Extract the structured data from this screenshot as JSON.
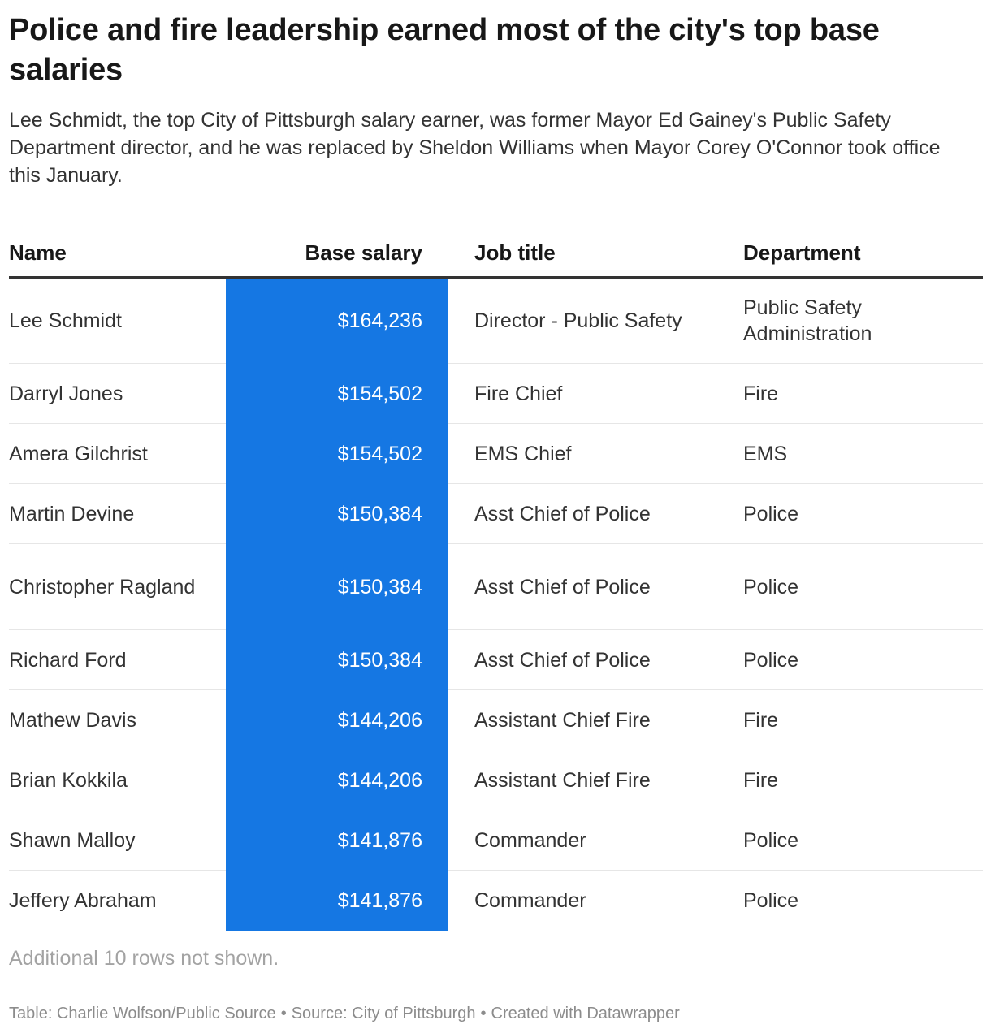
{
  "title": "Police and fire leadership earned most of the city's top base salaries",
  "subtitle": "Lee Schmidt, the top City of Pittsburgh salary earner, was former Mayor Ed Gainey's Public Safety Department director, and he was replaced by Sheldon Williams when Mayor Corey O'Connor took office this January.",
  "colors": {
    "salary_column_bg": "#1577e3",
    "salary_column_text": "#ffffff"
  },
  "chart_data": {
    "type": "table",
    "columns": [
      "Name",
      "Base salary",
      "Job title",
      "Department"
    ],
    "rows": [
      {
        "name": "Lee Schmidt",
        "salary": "$164,236",
        "job": "Director - Public Safety",
        "dept": "Public Safety Administration"
      },
      {
        "name": "Darryl Jones",
        "salary": "$154,502",
        "job": "Fire Chief",
        "dept": "Fire"
      },
      {
        "name": "Amera Gilchrist",
        "salary": "$154,502",
        "job": "EMS Chief",
        "dept": "EMS"
      },
      {
        "name": "Martin Devine",
        "salary": "$150,384",
        "job": "Asst Chief of Police",
        "dept": "Police"
      },
      {
        "name": "Christopher Ragland",
        "salary": "$150,384",
        "job": "Asst Chief of Police",
        "dept": "Police"
      },
      {
        "name": "Richard Ford",
        "salary": "$150,384",
        "job": "Asst Chief of Police",
        "dept": "Police"
      },
      {
        "name": "Mathew Davis",
        "salary": "$144,206",
        "job": "Assistant Chief Fire",
        "dept": "Fire"
      },
      {
        "name": "Brian Kokkila",
        "salary": "$144,206",
        "job": "Assistant Chief Fire",
        "dept": "Fire"
      },
      {
        "name": "Shawn Malloy",
        "salary": "$141,876",
        "job": "Commander",
        "dept": "Police"
      },
      {
        "name": "Jeffery Abraham",
        "salary": "$141,876",
        "job": "Commander",
        "dept": "Police"
      }
    ]
  },
  "note": "Additional 10 rows not shown.",
  "footer": {
    "table_credit": "Table: Charlie Wolfson/Public Source",
    "separator": "•",
    "source": "Source: City of Pittsburgh",
    "created_with": "Created with Datawrapper"
  }
}
